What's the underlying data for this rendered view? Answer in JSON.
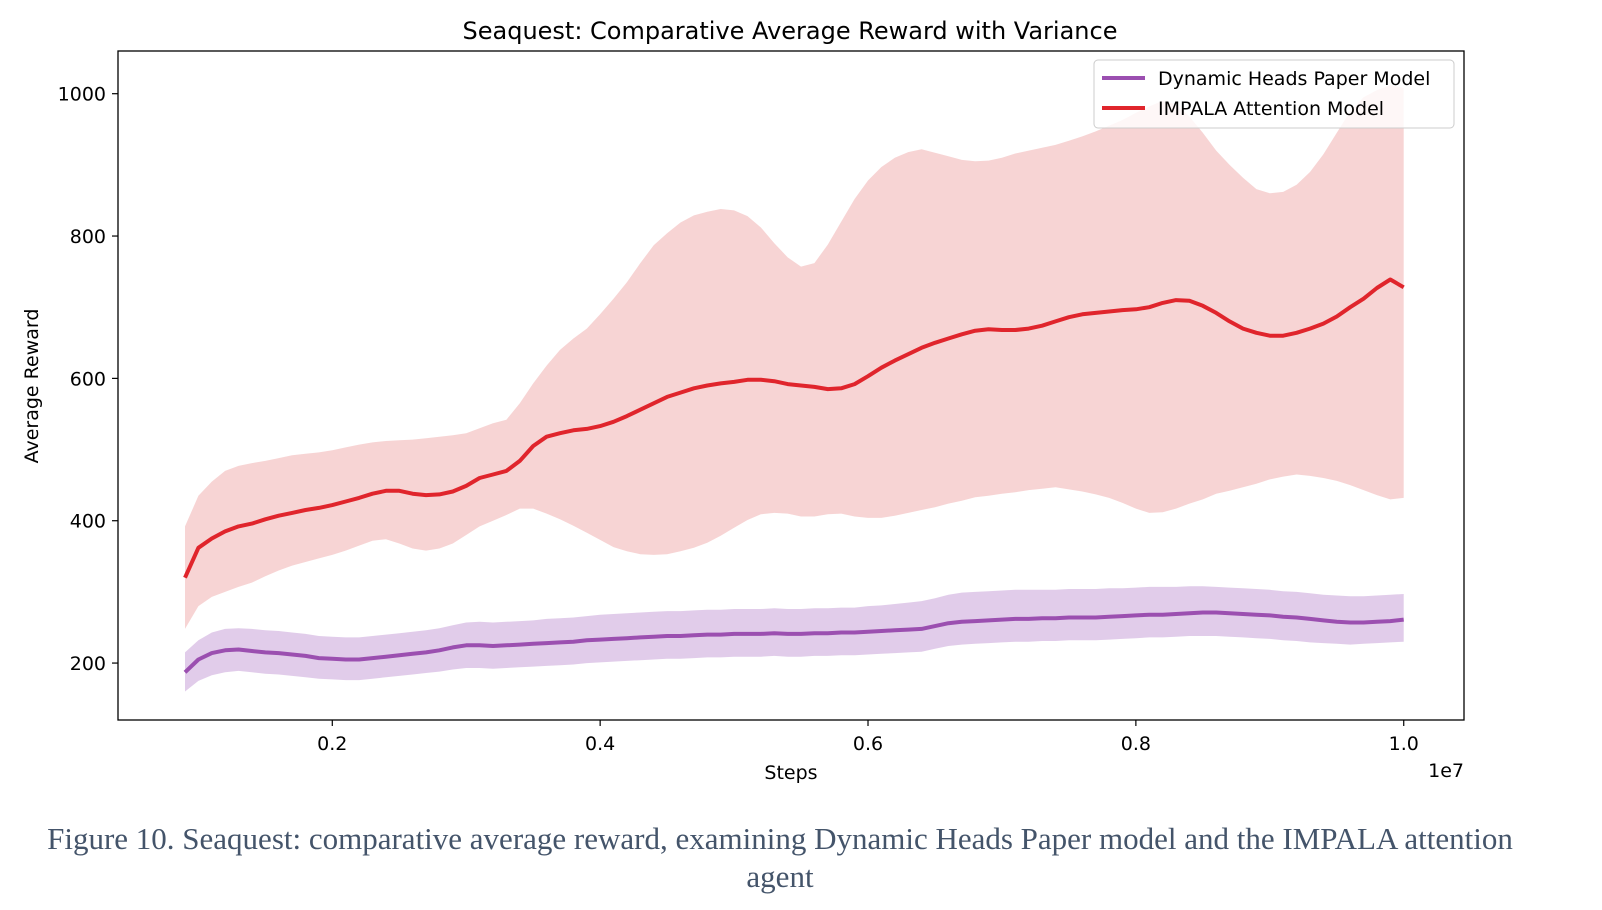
{
  "caption": "Figure 10. Seaquest: comparative average reward, examining Dynamic Heads Paper model and the IMPALA attention agent",
  "chart_data": {
    "type": "line",
    "title": "Seaquest: Comparative Average Reward with Variance",
    "xlabel": "Steps",
    "ylabel": "Average Reward",
    "x_offset_label": "1e7",
    "xlim": [
      0.04,
      1.045
    ],
    "ylim": [
      120,
      1060
    ],
    "xticks": [
      0.2,
      0.4,
      0.6,
      0.8,
      1.0
    ],
    "xtick_labels": [
      "0.2",
      "0.4",
      "0.6",
      "0.8",
      "1.0"
    ],
    "yticks": [
      200,
      400,
      600,
      800,
      1000
    ],
    "ytick_labels": [
      "200",
      "400",
      "600",
      "800",
      "1000"
    ],
    "grid": false,
    "legend_position": "top-right",
    "x": [
      0.09,
      0.1,
      0.11,
      0.12,
      0.13,
      0.14,
      0.15,
      0.16,
      0.17,
      0.18,
      0.19,
      0.2,
      0.21,
      0.22,
      0.23,
      0.24,
      0.25,
      0.26,
      0.27,
      0.28,
      0.29,
      0.3,
      0.31,
      0.32,
      0.33,
      0.34,
      0.35,
      0.36,
      0.37,
      0.38,
      0.39,
      0.4,
      0.41,
      0.42,
      0.43,
      0.44,
      0.45,
      0.46,
      0.47,
      0.48,
      0.49,
      0.5,
      0.51,
      0.52,
      0.53,
      0.54,
      0.55,
      0.56,
      0.57,
      0.58,
      0.59,
      0.6,
      0.61,
      0.62,
      0.63,
      0.64,
      0.65,
      0.66,
      0.67,
      0.68,
      0.69,
      0.7,
      0.71,
      0.72,
      0.73,
      0.74,
      0.75,
      0.76,
      0.77,
      0.78,
      0.79,
      0.8,
      0.81,
      0.82,
      0.83,
      0.84,
      0.85,
      0.86,
      0.87,
      0.88,
      0.89,
      0.9,
      0.91,
      0.92,
      0.93,
      0.94,
      0.95,
      0.96,
      0.97,
      0.98,
      0.99,
      1.0
    ],
    "series": [
      {
        "name": "Dynamic Heads Paper Model",
        "color": "#9b4fb0",
        "band_color": "#dcc3e6",
        "values": [
          187,
          205,
          214,
          218,
          219,
          217,
          215,
          214,
          212,
          210,
          207,
          206,
          205,
          205,
          207,
          209,
          211,
          213,
          215,
          218,
          222,
          225,
          225,
          224,
          225,
          226,
          227,
          228,
          229,
          230,
          232,
          233,
          234,
          235,
          236,
          237,
          238,
          238,
          239,
          240,
          240,
          241,
          241,
          241,
          242,
          241,
          241,
          242,
          242,
          243,
          243,
          244,
          245,
          246,
          247,
          248,
          252,
          256,
          258,
          259,
          260,
          261,
          262,
          262,
          263,
          263,
          264,
          264,
          264,
          265,
          266,
          267,
          268,
          268,
          269,
          270,
          271,
          271,
          270,
          269,
          268,
          267,
          265,
          264,
          262,
          260,
          258,
          257,
          257,
          258,
          259,
          261
        ],
        "lower": [
          160,
          175,
          183,
          187,
          189,
          187,
          185,
          184,
          182,
          180,
          178,
          177,
          176,
          176,
          178,
          180,
          182,
          184,
          186,
          188,
          191,
          193,
          193,
          192,
          193,
          194,
          195,
          196,
          197,
          198,
          200,
          201,
          202,
          203,
          204,
          205,
          206,
          206,
          207,
          208,
          208,
          209,
          209,
          209,
          210,
          209,
          209,
          210,
          210,
          211,
          211,
          212,
          213,
          214,
          215,
          216,
          220,
          224,
          226,
          227,
          228,
          229,
          230,
          230,
          231,
          231,
          232,
          232,
          232,
          233,
          234,
          235,
          236,
          236,
          237,
          238,
          238,
          238,
          237,
          236,
          235,
          234,
          232,
          231,
          229,
          228,
          227,
          226,
          227,
          228,
          229,
          230
        ],
        "upper": [
          215,
          232,
          243,
          248,
          249,
          248,
          246,
          245,
          243,
          241,
          238,
          237,
          236,
          236,
          238,
          240,
          242,
          244,
          246,
          249,
          253,
          257,
          258,
          257,
          258,
          259,
          260,
          262,
          263,
          264,
          266,
          268,
          269,
          270,
          271,
          272,
          273,
          273,
          274,
          275,
          275,
          276,
          276,
          276,
          277,
          276,
          276,
          277,
          277,
          278,
          278,
          280,
          281,
          283,
          285,
          287,
          291,
          296,
          299,
          300,
          301,
          302,
          303,
          303,
          303,
          303,
          304,
          304,
          304,
          305,
          305,
          306,
          307,
          307,
          307,
          308,
          308,
          307,
          306,
          305,
          304,
          303,
          301,
          300,
          298,
          296,
          295,
          294,
          294,
          295,
          296,
          297
        ]
      },
      {
        "name": "IMPALA Attention Model",
        "color": "#e0252c",
        "band_color": "#f6cccc",
        "values": [
          320,
          362,
          375,
          385,
          392,
          396,
          402,
          407,
          411,
          415,
          418,
          422,
          427,
          432,
          438,
          442,
          442,
          438,
          436,
          437,
          441,
          449,
          460,
          465,
          470,
          484,
          505,
          518,
          523,
          527,
          529,
          533,
          539,
          547,
          556,
          565,
          574,
          580,
          586,
          590,
          593,
          595,
          598,
          598,
          596,
          592,
          590,
          588,
          585,
          586,
          592,
          603,
          615,
          625,
          634,
          643,
          650,
          656,
          662,
          667,
          669,
          668,
          668,
          670,
          674,
          680,
          686,
          690,
          692,
          694,
          696,
          697,
          700,
          706,
          710,
          709,
          702,
          692,
          680,
          670,
          664,
          660,
          660,
          664,
          670,
          677,
          687,
          700,
          712,
          727,
          739,
          728
        ],
        "lower": [
          248,
          280,
          293,
          300,
          307,
          313,
          322,
          330,
          337,
          342,
          347,
          352,
          358,
          365,
          372,
          374,
          368,
          361,
          358,
          361,
          368,
          380,
          392,
          400,
          408,
          417,
          417,
          410,
          402,
          393,
          383,
          373,
          363,
          357,
          353,
          352,
          353,
          357,
          362,
          369,
          379,
          390,
          401,
          409,
          411,
          410,
          406,
          406,
          409,
          410,
          406,
          404,
          404,
          407,
          411,
          415,
          419,
          424,
          428,
          433,
          435,
          438,
          440,
          443,
          445,
          447,
          444,
          441,
          437,
          432,
          425,
          417,
          411,
          412,
          417,
          424,
          430,
          438,
          442,
          447,
          452,
          458,
          462,
          465,
          463,
          460,
          456,
          450,
          443,
          436,
          430,
          432
        ],
        "upper": [
          392,
          435,
          455,
          470,
          477,
          481,
          484,
          488,
          492,
          494,
          496,
          499,
          503,
          507,
          510,
          512,
          513,
          514,
          516,
          518,
          520,
          523,
          530,
          537,
          542,
          565,
          593,
          618,
          640,
          656,
          670,
          690,
          712,
          735,
          762,
          787,
          804,
          819,
          829,
          834,
          838,
          836,
          828,
          812,
          790,
          770,
          757,
          762,
          788,
          820,
          852,
          878,
          897,
          910,
          918,
          922,
          917,
          912,
          907,
          905,
          906,
          910,
          916,
          920,
          924,
          928,
          934,
          940,
          947,
          955,
          963,
          973,
          982,
          990,
          985,
          968,
          945,
          920,
          900,
          882,
          866,
          860,
          862,
          872,
          890,
          915,
          945,
          975,
          995,
          1005,
          1012,
          1008
        ]
      }
    ]
  }
}
